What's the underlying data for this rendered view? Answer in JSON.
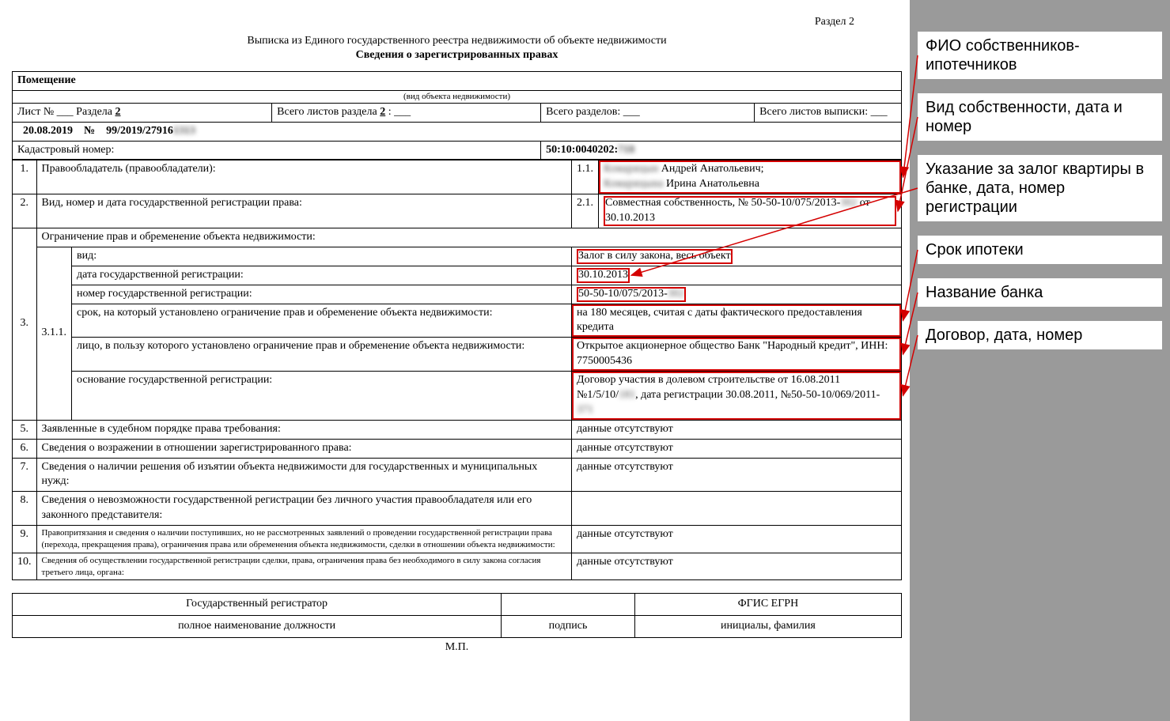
{
  "section_label": "Раздел 2",
  "title1": "Выписка из Единого государственного реестра недвижимости об объекте недвижимости",
  "title2": "Сведения о зарегистрированных правах",
  "object_header": "Помещение",
  "object_type_caption": "(вид объекта недвижимости)",
  "meta": {
    "sheet_prefix": "Лист № ___  Раздела ",
    "sheet_section": "2",
    "total_sheets_prefix": "Всего листов раздела ",
    "total_sheets_section": "2",
    "colon_suffix": " : ___",
    "total_sections": "Всего разделов: ___",
    "total_extract": "Всего листов выписки: ___",
    "date": "20.08.2019",
    "num_prefix": "№",
    "reg_no": "99/2019/27916",
    "reg_no_blur": "1313"
  },
  "cadastral_label": "Кадастровый номер:",
  "cadastral_value": "50:10:0040202:",
  "cadastral_blur": "718",
  "rows": {
    "r1": {
      "n": "1.",
      "label": "Правообладатель (правообладатели):",
      "sub": "1.1.",
      "owner1_blur": "Комарицын ",
      "owner1": "Андрей Анатольевич;",
      "owner2_blur": "Комарицына ",
      "owner2": "Ирина Анатольевна"
    },
    "r2": {
      "n": "2.",
      "label": "Вид, номер и дата государственной регистрации права:",
      "sub": "2.1.",
      "val": "Совместная собственность, № 50-50-10/075/2013-",
      "val_blur": "302",
      "val_tail": " от 30.10.2013"
    },
    "r3": {
      "n": "3.",
      "head": "Ограничение прав и обременение объекта недвижимости:",
      "sub": "3.1.1.",
      "type_label": "вид:",
      "type_val": "Залог в силу закона, весь объект",
      "date_label": "дата государственной регистрации:",
      "date_val": "30.10.2013",
      "num_label": "номер государственной регистрации:",
      "num_val": "50-50-10/075/2013-",
      "num_blur": "302",
      "term_label": "срок, на который установлено ограничение прав и обременение объекта недвижимости:",
      "term_val": "на 180 месяцев, считая с даты фактического предоставления кредита",
      "benef_label": "лицо, в пользу которого установлено ограничение прав и обременение объекта недвижимости:",
      "benef_val": "Открытое акционерное общество Банк \"Народный кредит\", ИНН: 7750005436",
      "basis_label": "основание государственной регистрации:",
      "basis_val": "Договор участия в долевом строительстве от 16.08.2011 №1/5/10/",
      "basis_blur": "181",
      "basis_tail": ", дата регистрации 30.08.2011, №50-50-10/069/2011-",
      "basis_blur2": "371"
    },
    "r5": {
      "n": "5.",
      "label": "Заявленные в судебном порядке права требования:",
      "val": "данные отсутствуют"
    },
    "r6": {
      "n": "6.",
      "label": "Сведения о возражении в отношении зарегистрированного права:",
      "val": "данные отсутствуют"
    },
    "r7": {
      "n": "7.",
      "label": "Сведения о наличии решения об изъятии объекта недвижимости для государственных и муниципальных нужд:",
      "val": "данные отсутствуют"
    },
    "r8": {
      "n": "8.",
      "label": "Сведения о невозможности государственной регистрации без личного участия правообладателя или его законного представителя:",
      "val": ""
    },
    "r9": {
      "n": "9.",
      "label": "Правопритязания и сведения о наличии поступивших, но не рассмотренных заявлений о проведении государственной регистрации права (перехода, прекращения права), ограничения права или обременения объекта недвижимости, сделки в отношении объекта недвижимости:",
      "val": "данные отсутствуют"
    },
    "r10": {
      "n": "10.",
      "label": "Сведения об осуществлении государственной регистрации сделки, права, ограничения права без необходимого в силу закона согласия третьего лица, органа:",
      "val": "данные отсутствуют"
    }
  },
  "footer": {
    "c1": "Государственный регистратор",
    "c2": "",
    "c3": "ФГИС ЕГРН",
    "d1": "полное наименование должности",
    "d2": "подпись",
    "d3": "инициалы, фамилия",
    "mp": "М.П."
  },
  "annotations": {
    "a1": "ФИО собственников-ипотечников",
    "a2": "Вид собственности, дата и номер",
    "a3": "Указание за залог квартиры в банке, дата, номер регистрации",
    "a4": "Срок ипотеки",
    "a5": "Название банка",
    "a6": "Договор, дата, номер"
  },
  "colors": {
    "highlight": "#d40000",
    "sidebar_bg": "#9a9a9a"
  }
}
